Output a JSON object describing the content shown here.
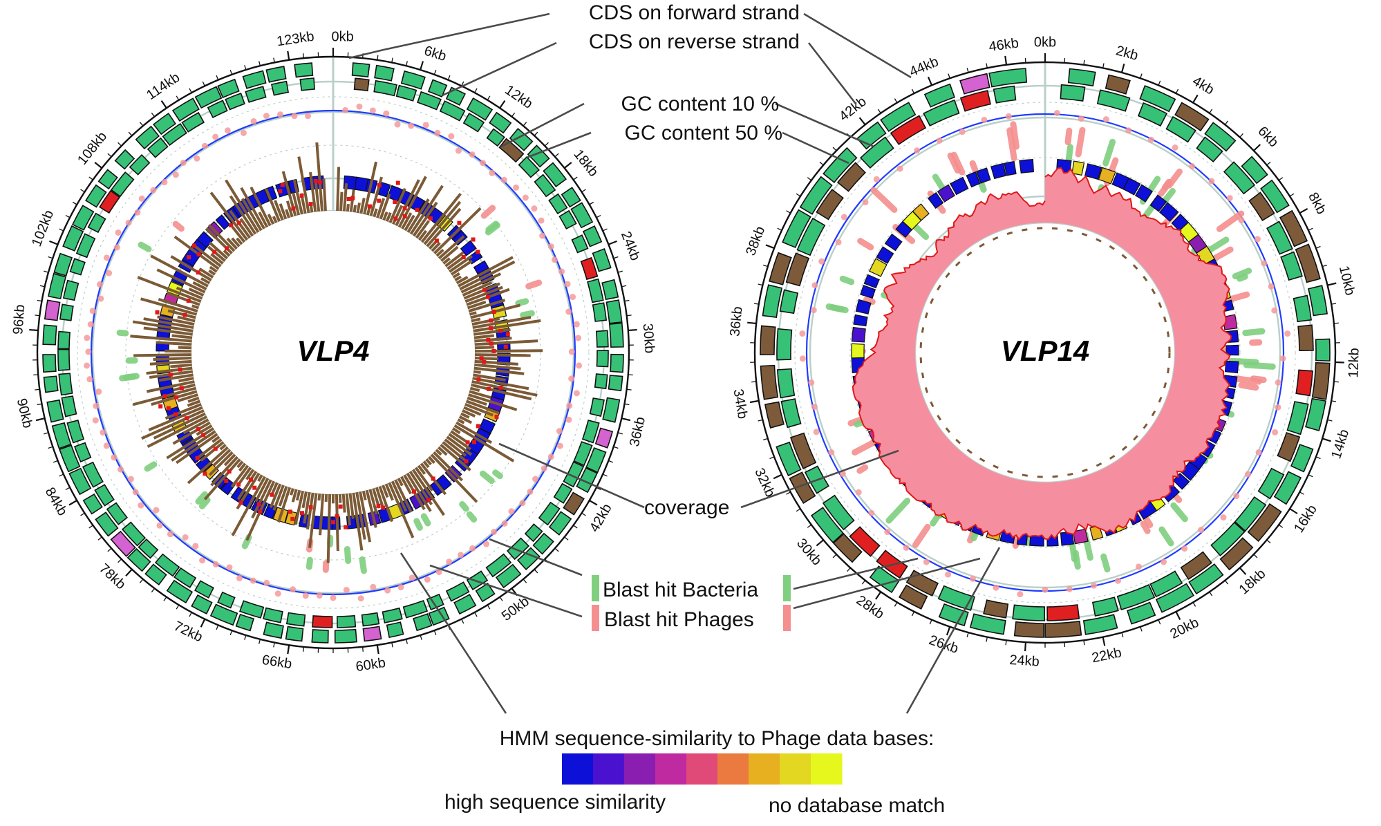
{
  "colors": {
    "cds_green": "#37c177",
    "cds_brown": "#7d5b3a",
    "gc_line": "#1f3bff",
    "gc_dots": "#f49a9a",
    "blast_bacteria": "#7fcf7f",
    "blast_phages": "#f58f8f",
    "coverage_vlp4": "#7b5a36",
    "coverage_vlp14_fill": "#f58fa0",
    "coverage_vlp14_line": "#e01818",
    "grid": "#b9cfc9"
  },
  "annotations": {
    "cds_forward": "CDS on forward strand",
    "cds_reverse": "CDS on reverse strand",
    "gc10": "GC content 10 %",
    "gc50": "GC content 50 %",
    "coverage": "coverage",
    "blast_bacteria": "Blast hit Bacteria",
    "blast_phages": "Blast hit Phages"
  },
  "legend": {
    "title": "HMM sequence-similarity to Phage data bases:",
    "low_label": "high sequence similarity",
    "high_label": "no database match",
    "colors": [
      "#0d10d6",
      "#4a12cf",
      "#8a1eb0",
      "#c02aa0",
      "#e04a78",
      "#ea7a40",
      "#e6b020",
      "#e3d722",
      "#e5f71c"
    ]
  },
  "genomes": [
    {
      "id": "vlp4",
      "title": "VLP4",
      "length_kb": 126,
      "tick_labels": [
        "0kb",
        "6kb",
        "12kb",
        "18kb",
        "24kb",
        "30kb",
        "36kb",
        "42kb",
        "50kb",
        "60kb",
        "66kb",
        "72kb",
        "78kb",
        "84kb",
        "90kb",
        "96kb",
        "102kb",
        "108kb",
        "114kb",
        "123kb"
      ],
      "tick_values": [
        0,
        6,
        12,
        18,
        24,
        30,
        36,
        42,
        50,
        60,
        66,
        72,
        78,
        84,
        90,
        96,
        102,
        108,
        114,
        123
      ]
    },
    {
      "id": "vlp14",
      "title": "VLP14",
      "length_kb": 47,
      "tick_labels": [
        "0kb",
        "2kb",
        "4kb",
        "6kb",
        "8kb",
        "10kb",
        "12kb",
        "14kb",
        "16kb",
        "18kb",
        "20kb",
        "22kb",
        "24kb",
        "26kb",
        "28kb",
        "30kb",
        "32kb",
        "34kb",
        "36kb",
        "38kb",
        "42kb",
        "44kb",
        "46kb"
      ],
      "tick_values": [
        0,
        2,
        4,
        6,
        8,
        10,
        12,
        14,
        16,
        18,
        20,
        22,
        24,
        26,
        28,
        30,
        32,
        34,
        36,
        38,
        42,
        44,
        46
      ]
    }
  ]
}
